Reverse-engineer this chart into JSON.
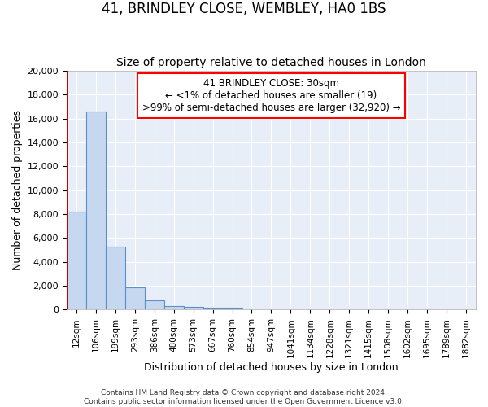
{
  "title_line1": "41, BRINDLEY CLOSE, WEMBLEY, HA0 1BS",
  "title_line2": "Size of property relative to detached houses in London",
  "xlabel": "Distribution of detached houses by size in London",
  "ylabel": "Number of detached properties",
  "bar_color": "#c5d8f0",
  "bar_edge_color": "#5b8fc9",
  "background_color": "#e8eef8",
  "grid_color": "#ffffff",
  "annotation_text": "41 BRINDLEY CLOSE: 30sqm\n← <1% of detached houses are smaller (19)\n>99% of semi-detached houses are larger (32,920) →",
  "marker_line_color": "#cc0000",
  "categories": [
    "12sqm",
    "106sqm",
    "199sqm",
    "293sqm",
    "386sqm",
    "480sqm",
    "573sqm",
    "667sqm",
    "760sqm",
    "854sqm",
    "947sqm",
    "1041sqm",
    "1134sqm",
    "1228sqm",
    "1321sqm",
    "1415sqm",
    "1508sqm",
    "1602sqm",
    "1695sqm",
    "1789sqm",
    "1882sqm"
  ],
  "values": [
    8200,
    16600,
    5300,
    1850,
    750,
    300,
    220,
    190,
    180,
    0,
    0,
    0,
    0,
    0,
    0,
    0,
    0,
    0,
    0,
    0,
    0
  ],
  "ylim": [
    0,
    20000
  ],
  "yticks": [
    0,
    2000,
    4000,
    6000,
    8000,
    10000,
    12000,
    14000,
    16000,
    18000,
    20000
  ],
  "footer_text": "Contains HM Land Registry data © Crown copyright and database right 2024.\nContains public sector information licensed under the Open Government Licence v3.0.",
  "fig_bg": "#ffffff"
}
